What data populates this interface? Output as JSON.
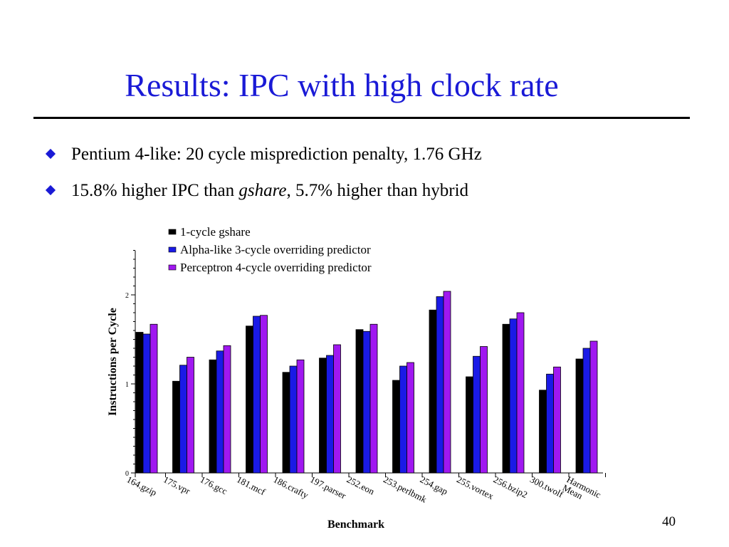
{
  "slide": {
    "title": "Results: IPC with high clock rate",
    "bullets": [
      {
        "text": "Pentium 4-like: 20 cycle misprediction penalty, 1.76 GHz"
      },
      {
        "prefix": "15.8% higher IPC than ",
        "italic": "gshare",
        "suffix": ", 5.7% higher than hybrid"
      }
    ],
    "page_number": "40",
    "bullet_icon": "diamond-bullet-icon",
    "colors": {
      "title": "#1a1ad6",
      "bullet": "#1a1ad6"
    }
  },
  "chart_data": {
    "type": "bar",
    "xlabel": "Benchmark",
    "ylabel": "Instructions per Cycle",
    "ylim": [
      0,
      2.5
    ],
    "yticks": [
      0,
      1,
      2
    ],
    "legend_placement": "top",
    "categories": [
      [
        "164.gzip"
      ],
      [
        "175.vpr"
      ],
      [
        "176.gcc"
      ],
      [
        "181.mcf"
      ],
      [
        "186.crafty"
      ],
      [
        "197.parser"
      ],
      [
        "252.eon"
      ],
      [
        "253.perlbmk"
      ],
      [
        "254.gap"
      ],
      [
        "255.vortex"
      ],
      [
        "256.bzip2"
      ],
      [
        "300.twolf"
      ],
      [
        "Harmonic",
        "Mean"
      ]
    ],
    "series": [
      {
        "name": "1-cycle gshare",
        "color": "#000000",
        "values": [
          1.58,
          1.03,
          1.27,
          1.65,
          1.13,
          1.29,
          1.61,
          1.04,
          1.83,
          1.08,
          1.67,
          0.93,
          1.28
        ]
      },
      {
        "name": "Alpha-like 3-cycle overriding predictor",
        "color": "#1a1ae6",
        "values": [
          1.56,
          1.21,
          1.37,
          1.76,
          1.2,
          1.32,
          1.59,
          1.2,
          1.98,
          1.31,
          1.73,
          1.11,
          1.4
        ]
      },
      {
        "name": "Perceptron 4-cycle overriding predictor",
        "color": "#a018f0",
        "values": [
          1.67,
          1.3,
          1.43,
          1.77,
          1.27,
          1.44,
          1.67,
          1.24,
          2.04,
          1.42,
          1.8,
          1.19,
          1.48
        ]
      }
    ]
  }
}
